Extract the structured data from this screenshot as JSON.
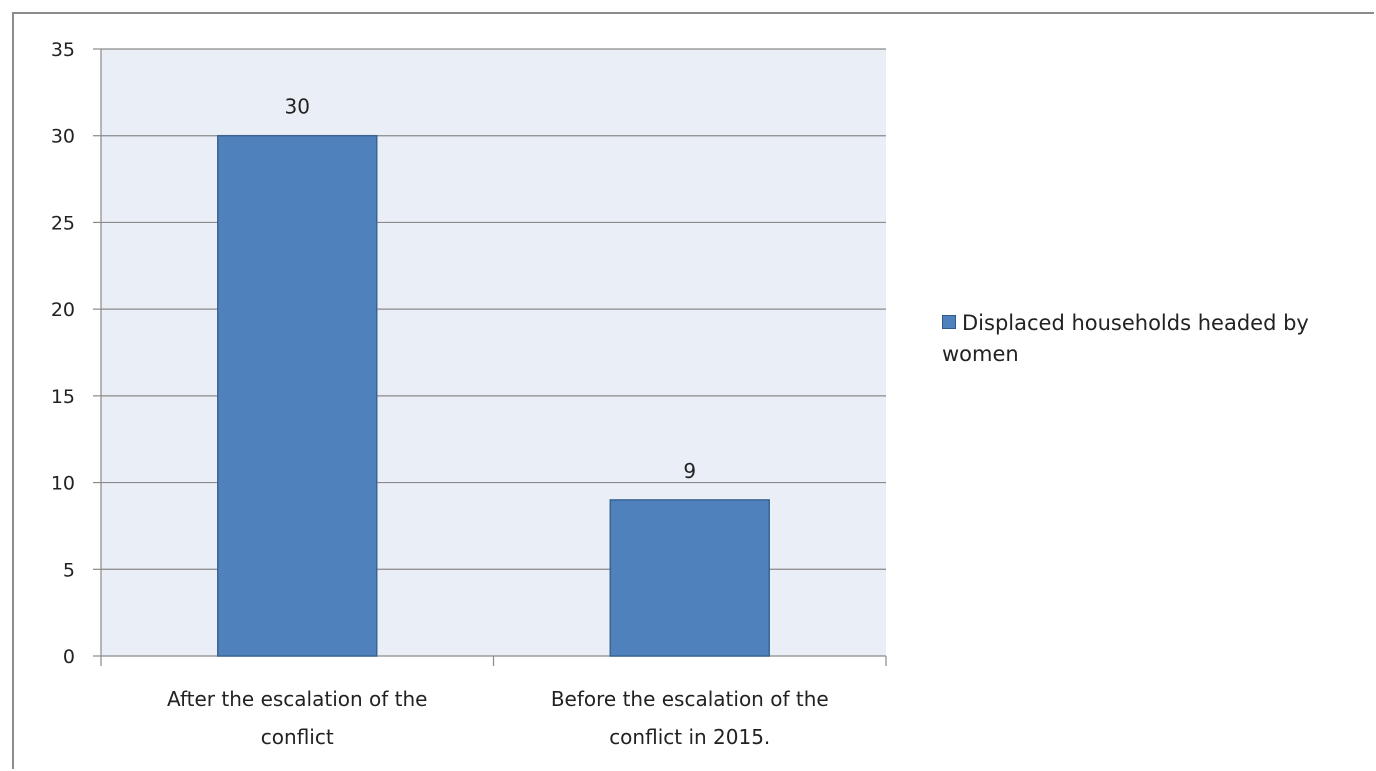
{
  "colors": {
    "bar": "#4f81bd",
    "bar_border": "#3a6593",
    "plot_bg": "#eaeef6",
    "grid": "#8a8a8a"
  },
  "chart_data": {
    "type": "bar",
    "title": "",
    "xlabel": "",
    "ylabel": "",
    "categories": [
      [
        "After the escalation of the",
        "conflict"
      ],
      [
        "Before the escalation of the",
        "conflict in 2015."
      ]
    ],
    "series": [
      {
        "name": "Displaced households headed by women",
        "values": [
          30,
          9
        ]
      }
    ],
    "data_labels": [
      "30",
      "9"
    ],
    "ylim": [
      0,
      35
    ],
    "yticks": [
      0,
      5,
      10,
      15,
      20,
      25,
      30,
      35
    ],
    "grid": true,
    "legend": "right"
  }
}
